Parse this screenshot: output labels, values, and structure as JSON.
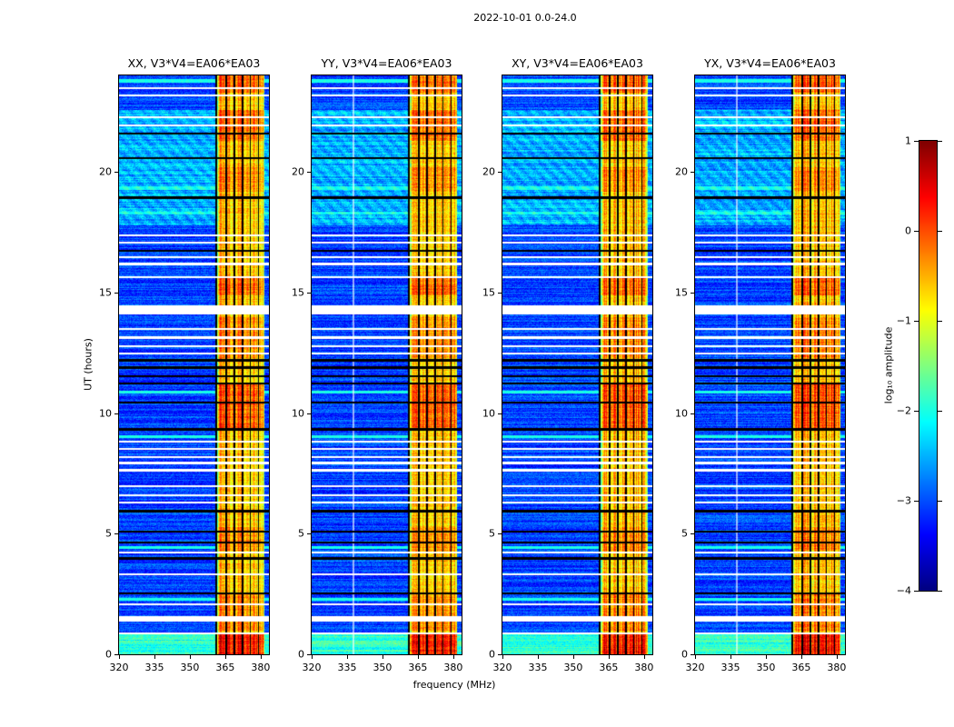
{
  "figure_title": "2022-10-01 0.0-24.0",
  "chart_data": {
    "type": "heatmap",
    "title": "2022-10-01 0.0-24.0",
    "panels": [
      {
        "id": "XX",
        "title": "XX, V3*V4=EA06*EA03"
      },
      {
        "id": "YY",
        "title": "YY, V3*V4=EA06*EA03"
      },
      {
        "id": "XY",
        "title": "XY, V3*V4=EA06*EA03"
      },
      {
        "id": "YX",
        "title": "YX, V3*V4=EA06*EA03"
      }
    ],
    "xlabel": "frequency (MHz)",
    "ylabel": "UT (hours)",
    "x_ticks": [
      320,
      335,
      350,
      365,
      380
    ],
    "y_ticks": [
      0,
      5,
      10,
      15,
      20
    ],
    "xlim": [
      320,
      383.5
    ],
    "ylim": [
      0,
      24
    ],
    "colorbar": {
      "label": "log₁₀ amplitude",
      "tick_values": [
        1,
        0,
        -1,
        -2,
        -3,
        -4
      ],
      "tick_labels": [
        "1",
        "0",
        "−1",
        "−2",
        "−3",
        "−4"
      ],
      "range": [
        -4,
        1
      ],
      "colormap": "jet"
    },
    "features": {
      "background_log10_amp": -3.05,
      "background_noise": 0.55,
      "rfi_band": {
        "f_start": 361.5,
        "f_stop": 381.5,
        "base_log10_amp": -0.6,
        "col_variation": 0.9,
        "noise": 0.5,
        "edge_mhz": 1.2,
        "edge_drop": 0.9
      },
      "flagged_channels_mhz": [
        360.9,
        365.2,
        368.7,
        372.1,
        375.4,
        378.8
      ],
      "faint_channel_mhz": 337.5,
      "faint_channel_panels": [
        1,
        3
      ],
      "white_gap_rows": [
        [
          0.9,
          0.04
        ],
        [
          1.5,
          0.12
        ],
        [
          2.1,
          0.04
        ],
        [
          3.35,
          0.04
        ],
        [
          4.25,
          0.04
        ],
        [
          6.3,
          0.04
        ],
        [
          6.6,
          0.04
        ],
        [
          7.0,
          0.04
        ],
        [
          7.65,
          0.04
        ],
        [
          7.95,
          0.04
        ],
        [
          8.2,
          0.04
        ],
        [
          8.55,
          0.04
        ],
        [
          8.85,
          0.04
        ],
        [
          12.5,
          0.04
        ],
        [
          12.8,
          0.04
        ],
        [
          13.15,
          0.04
        ],
        [
          13.5,
          0.04
        ],
        [
          14.3,
          0.19
        ],
        [
          15.65,
          0.04
        ],
        [
          16.2,
          0.04
        ],
        [
          16.5,
          0.04
        ],
        [
          17.1,
          0.04
        ],
        [
          17.4,
          0.04
        ],
        [
          21.95,
          0.04
        ],
        [
          22.3,
          0.04
        ],
        [
          23.2,
          0.04
        ],
        [
          23.5,
          0.04
        ]
      ],
      "flagged_rows": [
        [
          2.55,
          0.045
        ],
        [
          4.0,
          0.045
        ],
        [
          4.65,
          0.045
        ],
        [
          5.1,
          0.04
        ],
        [
          5.95,
          0.045
        ],
        [
          9.35,
          0.045
        ],
        [
          10.45,
          0.045
        ],
        [
          11.25,
          0.045
        ],
        [
          11.55,
          0.04
        ],
        [
          11.9,
          0.045
        ],
        [
          12.2,
          0.045
        ],
        [
          16.75,
          0.045
        ],
        [
          18.95,
          0.045
        ],
        [
          20.6,
          0.04
        ],
        [
          21.6,
          0.045
        ]
      ],
      "bright_rows": [
        [
          2.3,
          0.05
        ],
        [
          4.45,
          0.05
        ],
        [
          9.05,
          0.05
        ],
        [
          10.9,
          0.05
        ],
        [
          18.3,
          0.06
        ],
        [
          19.35,
          0.07
        ],
        [
          23.8,
          0.08
        ]
      ],
      "bright_regions": [
        [
          0,
          0.85,
          1.15
        ],
        [
          17.8,
          22.6,
          0.55
        ]
      ],
      "band_bright_regions": [
        [
          0,
          0.85,
          0.9
        ],
        [
          1.0,
          2.5,
          0.3
        ],
        [
          4.3,
          5.3,
          0.3
        ],
        [
          9.3,
          11.2,
          0.55
        ],
        [
          12.3,
          14.0,
          0.3
        ],
        [
          14.9,
          15.6,
          0.5
        ],
        [
          19.2,
          20.2,
          0.3
        ],
        [
          21.3,
          22.6,
          0.45
        ],
        [
          23.3,
          24,
          0.5
        ]
      ],
      "diagonal_texture_region": [
        17.8,
        22.6
      ],
      "seeds": [
        11,
        23,
        37,
        53
      ]
    }
  }
}
